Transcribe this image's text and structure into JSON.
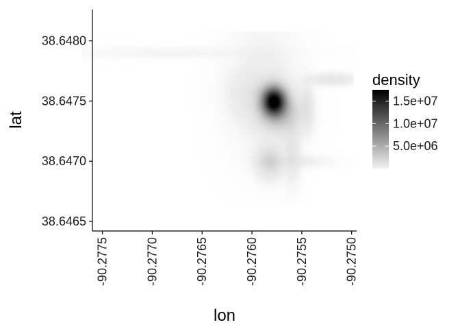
{
  "chart_data": {
    "type": "heatmap",
    "title": "",
    "xlabel": "lon",
    "ylabel": "lat",
    "xlim": [
      -90.2776,
      -90.27495
    ],
    "ylim": [
      38.64642,
      38.64826
    ],
    "x_ticks": [
      -90.2775,
      -90.277,
      -90.2765,
      -90.276,
      -90.2755,
      -90.275
    ],
    "x_tick_labels": [
      "-90.2775",
      "-90.2770",
      "-90.2765",
      "-90.2760",
      "-90.2755",
      "-90.2750"
    ],
    "y_ticks": [
      38.6465,
      38.647,
      38.6475,
      38.648
    ],
    "y_tick_labels": [
      "38.6465",
      "38.6470",
      "38.6475",
      "38.6480"
    ],
    "grid": false,
    "color_scale": {
      "name": "density",
      "low_color": "#f2f2f2",
      "high_color": "#000000",
      "range": [
        0,
        17500000
      ],
      "breaks": [
        5000000,
        10000000,
        15000000
      ],
      "break_labels": [
        "5.0e+06",
        "1.0e+07",
        "1.5e+07"
      ]
    },
    "legend_position": "right",
    "density_components": [
      {
        "lon": -90.27578,
        "lat": 38.6475,
        "sigma_lon": 8e-05,
        "sigma_lat": 8e-05,
        "peak": 17000000
      },
      {
        "lon": -90.27572,
        "lat": 38.6474,
        "sigma_lon": 0.00013,
        "sigma_lat": 0.0001,
        "peak": 3500000
      },
      {
        "lon": -90.27582,
        "lat": 38.647,
        "sigma_lon": 8e-05,
        "sigma_lat": 8e-05,
        "peak": 2200000
      },
      {
        "lon": -90.2756,
        "lat": 38.6471,
        "sigma_lon": 5e-05,
        "sigma_lat": 0.00016,
        "peak": 900000
      },
      {
        "lon": -90.27545,
        "lat": 38.64745,
        "sigma_lon": 4e-05,
        "sigma_lat": 0.00012,
        "peak": 900000
      },
      {
        "lon": -90.2752,
        "lat": 38.64768,
        "sigma_lon": 0.00014,
        "sigma_lat": 3e-05,
        "peak": 900000
      },
      {
        "lon": -90.276,
        "lat": 38.64755,
        "sigma_lon": 0.00014,
        "sigma_lat": 0.00012,
        "peak": 700000
      },
      {
        "lon": -90.2756,
        "lat": 38.647,
        "sigma_lon": 0.0002,
        "sigma_lat": 3e-05,
        "peak": 500000
      },
      {
        "lon": -90.2768,
        "lat": 38.6479,
        "sigma_lon": 0.0006,
        "sigma_lat": 3e-05,
        "peak": 150000
      },
      {
        "lon": -90.27588,
        "lat": 38.6476,
        "sigma_lon": 0.0002,
        "sigma_lat": 0.0003,
        "peak": 400000
      }
    ]
  }
}
